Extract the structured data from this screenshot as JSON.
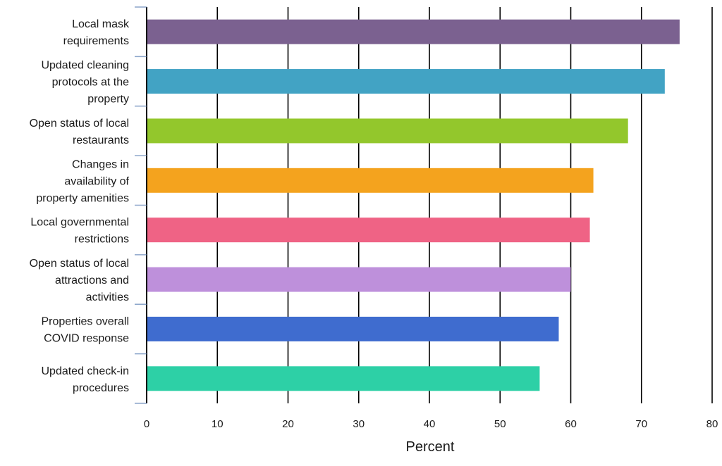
{
  "chart_data": {
    "type": "bar",
    "orientation": "horizontal",
    "categories": [
      "Local mask requirements",
      "Updated cleaning protocols at the property",
      "Open status of local restaurants",
      "Changes in availability of property amenities",
      "Local governmental restrictions",
      "Open status of local attractions and activities",
      "Properties overall COVID response",
      "Updated check-in procedures"
    ],
    "category_lines": [
      [
        "Local mask",
        "requirements"
      ],
      [
        "Updated cleaning",
        "protocols at the",
        "property"
      ],
      [
        "Open status of local",
        "restaurants"
      ],
      [
        "Changes in",
        "availability of",
        "property amenities"
      ],
      [
        "Local governmental",
        "restrictions"
      ],
      [
        "Open status of local",
        "attractions and",
        "activities"
      ],
      [
        "Properties overall",
        "COVID response"
      ],
      [
        "Updated check-in",
        "procedures"
      ]
    ],
    "values": [
      75.4,
      73.3,
      68.1,
      63.2,
      62.7,
      60.0,
      58.3,
      55.6
    ],
    "colors": [
      "#7b6190",
      "#42a3c4",
      "#93c72c",
      "#f4a31e",
      "#ef6385",
      "#be90db",
      "#3f6ccf",
      "#2dd0a6"
    ],
    "xlabel": "Percent",
    "ylabel": "",
    "title": "",
    "xlim": [
      0,
      80
    ],
    "xticks": [
      0,
      10,
      20,
      30,
      40,
      50,
      60,
      70,
      80
    ],
    "grid": "vertical",
    "grid_color": "#000000",
    "axis_color": "#5b7fb4",
    "legend": "none"
  }
}
